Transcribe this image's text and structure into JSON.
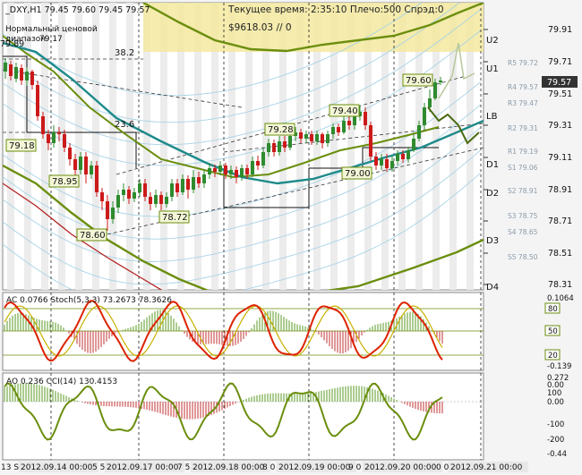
{
  "header": {
    "symbol_line": "_DXY,H1  79.45 79.60 79.45 79.57",
    "range_label_1": "Нормальный ценовой",
    "range_label_2": "диапазон",
    "range_value": "79.17",
    "info_line_1": "Текущее время: 2:35:10 Плечо:500 Спрэд:0",
    "info_line_2": "$9618.03     // 0",
    "top_left_price": "79.89"
  },
  "price_axis": {
    "ticks": [
      "79.91",
      "79.71",
      "79.51",
      "79.31",
      "79.11",
      "78.91",
      "78.71",
      "78.51",
      "78.31"
    ],
    "current_price": "79.57"
  },
  "pivot_levels": [
    {
      "name": "U2",
      "label": "U2"
    },
    {
      "name": "U1",
      "label": "U1"
    },
    {
      "name": "LB",
      "label": "LB"
    },
    {
      "name": "D1",
      "label": "D1"
    },
    {
      "name": "D2",
      "label": "D2"
    },
    {
      "name": "D3",
      "label": "D3"
    },
    {
      "name": "D4",
      "label": "D4"
    }
  ],
  "resistance_labels": [
    "R5 79.72",
    "R4 79.57",
    "R3 79.47",
    "R2 79.31",
    "R1 79.19",
    "S1 79.06",
    "S2 78.91",
    "S3 78.75",
    "S4 78.65",
    "S5 78.50"
  ],
  "price_boxes": [
    "79.18",
    "78.95",
    "78.60",
    "78.72",
    "79.28",
    "79.40",
    "79.60",
    "79.00"
  ],
  "range_marks": [
    "38.2",
    "23.6"
  ],
  "ac_panel": {
    "label": "AC 0.0766  Stoch(5,3,3) 73.2673 78.3626",
    "ticks": [
      "0.1064",
      "80",
      "50",
      "20",
      "-0.139"
    ]
  },
  "ao_panel": {
    "label": "AO 0.236  CCI(14) 130.4153",
    "ticks": [
      "0.272",
      "0.00",
      "100",
      "0.00",
      "-100",
      "-200",
      "-0.44"
    ]
  },
  "time_axis": {
    "labels": [
      "13 S",
      "2012.09.14 00:00",
      "5 5",
      "2012.09.17 00:00",
      "7 5",
      "2012.09.18 00:00",
      "8 0",
      "2012.09.19 00:00",
      "9 0",
      "2012.09.20 00:00",
      "0 0",
      "2012.09.21 00:00"
    ]
  },
  "colors": {
    "bull_candle": "#2e8b2e",
    "bear_candle": "#cc1a1a",
    "ma_teal": "#1e8a8a",
    "ma_olive": "#6b8e0e",
    "ma_red": "#b22222",
    "highlight": "#f3e9a0",
    "box_border": "#6b8e0e"
  }
}
